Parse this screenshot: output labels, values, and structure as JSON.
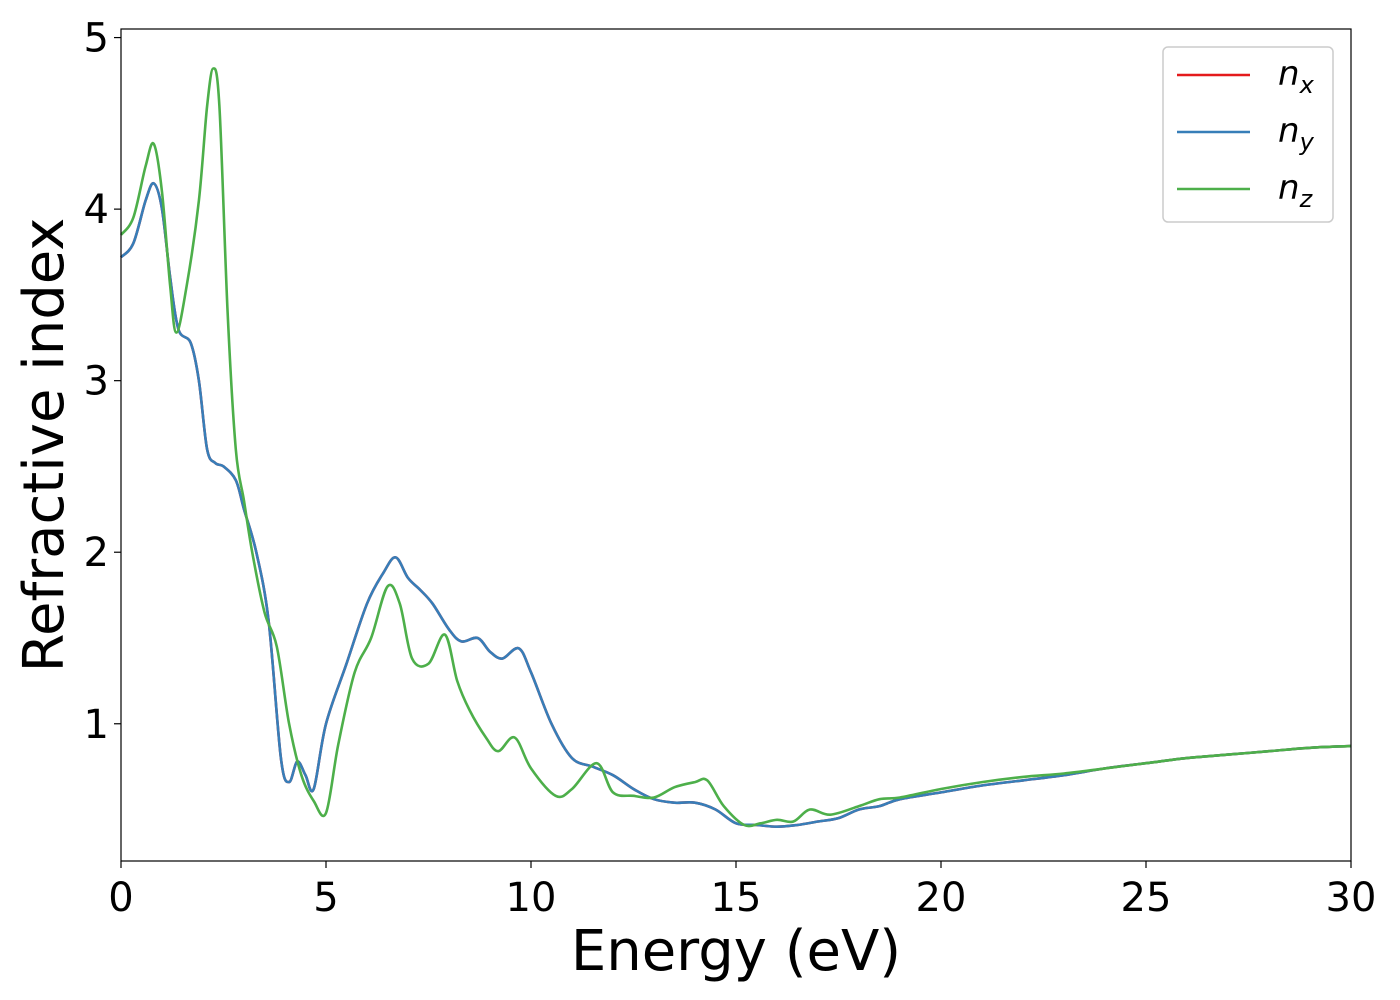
{
  "chart_data": {
    "type": "line",
    "title": "",
    "xlabel": "Energy (eV)",
    "ylabel": "Refractive index",
    "xlim": [
      0,
      30
    ],
    "ylim": [
      0.2,
      5.05
    ],
    "xticks": [
      0,
      5,
      10,
      15,
      20,
      25,
      30
    ],
    "xtick_labels": [
      "0",
      "5",
      "10",
      "15",
      "20",
      "25",
      "30"
    ],
    "yticks": [
      1,
      2,
      3,
      4,
      5
    ],
    "ytick_labels": [
      "1",
      "2",
      "3",
      "4",
      "5"
    ],
    "grid": false,
    "legend_position": "top-right",
    "series": [
      {
        "name": "n_x",
        "legend_main": "n",
        "legend_sub": "x",
        "color": "#e41a1c",
        "x": [
          0,
          0.3,
          0.6,
          0.8,
          1.0,
          1.2,
          1.4,
          1.7,
          1.9,
          2.1,
          2.3,
          2.5,
          2.8,
          3.0,
          3.3,
          3.6,
          3.9,
          4.1,
          4.3,
          4.5,
          4.7,
          5.0,
          5.5,
          6.0,
          6.4,
          6.7,
          7.0,
          7.3,
          7.6,
          8.0,
          8.3,
          8.7,
          9.0,
          9.3,
          9.7,
          10.0,
          10.5,
          11.0,
          11.5,
          12.0,
          12.5,
          13.0,
          13.5,
          14.0,
          14.5,
          15.0,
          15.5,
          16.0,
          16.5,
          17.0,
          17.5,
          18.0,
          18.5,
          19.0,
          20.0,
          21.0,
          22.0,
          23.0,
          24.0,
          25.0,
          26.0,
          27.0,
          28.0,
          29.0,
          30.0
        ],
        "y": [
          3.72,
          3.8,
          4.05,
          4.15,
          4.0,
          3.6,
          3.3,
          3.22,
          3.0,
          2.6,
          2.52,
          2.5,
          2.42,
          2.25,
          2.0,
          1.6,
          0.8,
          0.66,
          0.78,
          0.7,
          0.62,
          1.0,
          1.35,
          1.7,
          1.88,
          1.97,
          1.85,
          1.78,
          1.7,
          1.55,
          1.48,
          1.5,
          1.42,
          1.38,
          1.44,
          1.3,
          1.0,
          0.8,
          0.75,
          0.7,
          0.62,
          0.56,
          0.54,
          0.54,
          0.5,
          0.42,
          0.41,
          0.4,
          0.41,
          0.43,
          0.45,
          0.5,
          0.52,
          0.56,
          0.6,
          0.64,
          0.67,
          0.7,
          0.74,
          0.77,
          0.8,
          0.82,
          0.84,
          0.86,
          0.87
        ]
      },
      {
        "name": "n_y",
        "legend_main": "n",
        "legend_sub": "y",
        "color": "#377eb8",
        "x": [
          0,
          0.3,
          0.6,
          0.8,
          1.0,
          1.2,
          1.4,
          1.7,
          1.9,
          2.1,
          2.3,
          2.5,
          2.8,
          3.0,
          3.3,
          3.6,
          3.9,
          4.1,
          4.3,
          4.5,
          4.7,
          5.0,
          5.5,
          6.0,
          6.4,
          6.7,
          7.0,
          7.3,
          7.6,
          8.0,
          8.3,
          8.7,
          9.0,
          9.3,
          9.7,
          10.0,
          10.5,
          11.0,
          11.5,
          12.0,
          12.5,
          13.0,
          13.5,
          14.0,
          14.5,
          15.0,
          15.5,
          16.0,
          16.5,
          17.0,
          17.5,
          18.0,
          18.5,
          19.0,
          20.0,
          21.0,
          22.0,
          23.0,
          24.0,
          25.0,
          26.0,
          27.0,
          28.0,
          29.0,
          30.0
        ],
        "y": [
          3.72,
          3.8,
          4.05,
          4.15,
          4.0,
          3.6,
          3.3,
          3.22,
          3.0,
          2.6,
          2.52,
          2.5,
          2.42,
          2.25,
          2.0,
          1.6,
          0.8,
          0.66,
          0.78,
          0.7,
          0.62,
          1.0,
          1.35,
          1.7,
          1.88,
          1.97,
          1.85,
          1.78,
          1.7,
          1.55,
          1.48,
          1.5,
          1.42,
          1.38,
          1.44,
          1.3,
          1.0,
          0.8,
          0.75,
          0.7,
          0.62,
          0.56,
          0.54,
          0.54,
          0.5,
          0.42,
          0.41,
          0.4,
          0.41,
          0.43,
          0.45,
          0.5,
          0.52,
          0.56,
          0.6,
          0.64,
          0.67,
          0.7,
          0.74,
          0.77,
          0.8,
          0.82,
          0.84,
          0.86,
          0.87
        ]
      },
      {
        "name": "n_z",
        "legend_main": "n",
        "legend_sub": "z",
        "color": "#4daf4a",
        "x": [
          0,
          0.3,
          0.6,
          0.8,
          1.0,
          1.2,
          1.35,
          1.6,
          1.9,
          2.1,
          2.25,
          2.4,
          2.6,
          2.8,
          3.0,
          3.2,
          3.5,
          3.8,
          4.1,
          4.4,
          4.7,
          5.0,
          5.3,
          5.7,
          6.1,
          6.5,
          6.8,
          7.1,
          7.5,
          7.9,
          8.2,
          8.5,
          8.9,
          9.2,
          9.6,
          10.0,
          10.6,
          11.0,
          11.6,
          12.0,
          12.5,
          13.0,
          13.5,
          14.0,
          14.3,
          14.7,
          15.2,
          15.6,
          16.0,
          16.4,
          16.8,
          17.3,
          18.0,
          18.5,
          19.0,
          20.0,
          21.0,
          22.0,
          23.0,
          24.0,
          25.0,
          26.0,
          27.0,
          28.0,
          29.0,
          30.0
        ],
        "y": [
          3.85,
          3.95,
          4.25,
          4.38,
          4.1,
          3.55,
          3.28,
          3.55,
          4.05,
          4.6,
          4.82,
          4.6,
          3.4,
          2.6,
          2.3,
          2.0,
          1.65,
          1.45,
          1.0,
          0.7,
          0.55,
          0.48,
          0.88,
          1.3,
          1.5,
          1.8,
          1.7,
          1.38,
          1.35,
          1.52,
          1.25,
          1.08,
          0.92,
          0.84,
          0.92,
          0.74,
          0.58,
          0.62,
          0.77,
          0.6,
          0.58,
          0.57,
          0.63,
          0.66,
          0.67,
          0.52,
          0.41,
          0.42,
          0.44,
          0.43,
          0.5,
          0.47,
          0.52,
          0.56,
          0.57,
          0.62,
          0.66,
          0.69,
          0.71,
          0.74,
          0.77,
          0.8,
          0.82,
          0.84,
          0.86,
          0.87
        ]
      }
    ]
  }
}
